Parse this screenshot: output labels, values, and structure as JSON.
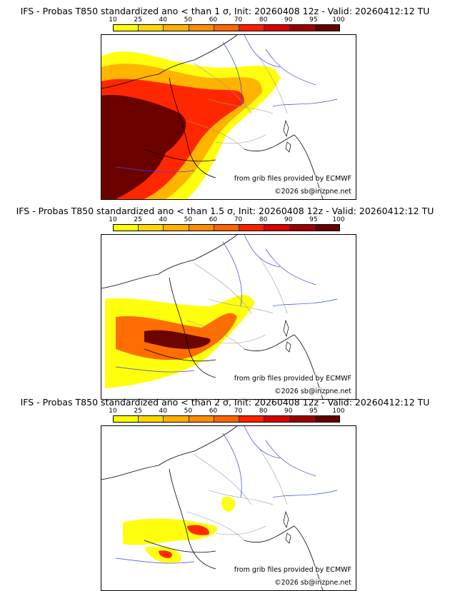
{
  "colorbar": {
    "ticks": [
      "10",
      "25",
      "40",
      "50",
      "60",
      "70",
      "80",
      "90",
      "95",
      "100"
    ],
    "colors": [
      "#ffff00",
      "#ffd700",
      "#ffb000",
      "#ff8c00",
      "#ff6400",
      "#ff2000",
      "#d80000",
      "#9c0000",
      "#640000"
    ]
  },
  "panels": [
    {
      "title": "IFS - Probas T850  standardized ano < than 1 σ, Init: 20260408 12z - Valid: 20260412:12 TU",
      "intensity": 1.0
    },
    {
      "title": "IFS - Probas T850  standardized ano < than 1.5 σ, Init: 20260408 12z - Valid: 20260412:12 TU",
      "intensity": 0.6
    },
    {
      "title": "IFS - Probas T850  standardized ano < than 2 σ, Init: 20260408 12z - Valid: 20260412:12 TU",
      "intensity": 0.3
    }
  ],
  "credits": {
    "source": "from grib files provided by ECMWF",
    "copyright": "©2026 sb@irizpne.net"
  }
}
